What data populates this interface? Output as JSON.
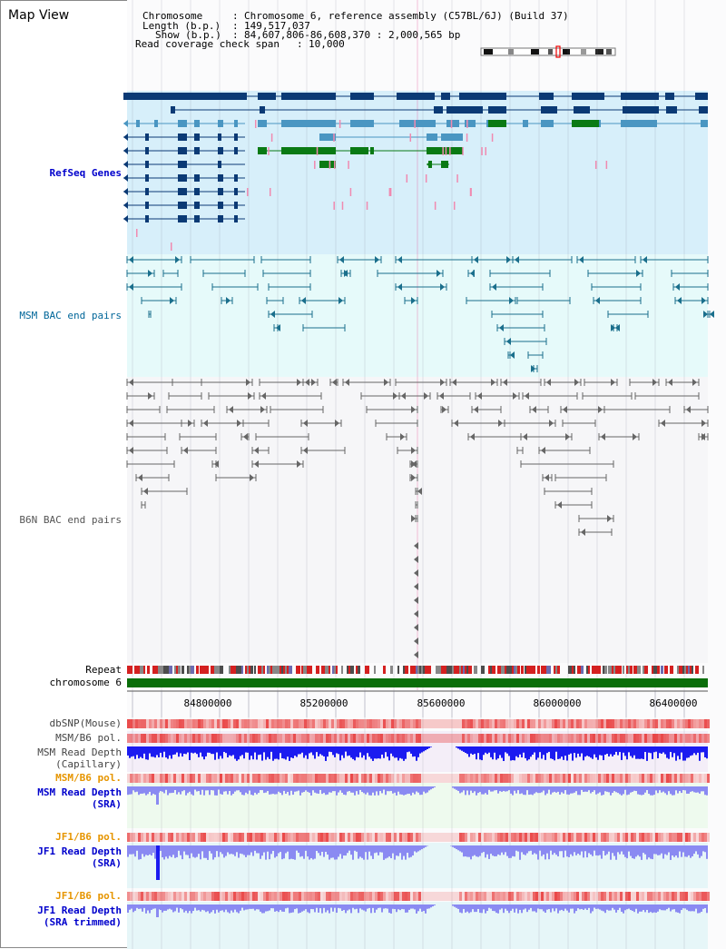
{
  "header": {
    "title": "Map View",
    "chromosome_label": "Chromosome",
    "chromosome_value": "Chromosome 6, reference assembly (C57BL/6J) (Build 37)",
    "length_label": "Length (b.p.)",
    "length_value": "149,517,037",
    "show_label": "Show (b.p.)",
    "show_value": "84,607,806-86,608,370 : 2,000,565 bp",
    "coverage_label": "Read coverage check span",
    "coverage_value": "10,000",
    "separator": ":"
  },
  "tracks": {
    "refseq": {
      "label": "RefSeq Genes",
      "color": "#0000cc"
    },
    "msm_bac": {
      "label": "MSM BAC end pairs",
      "color": "#006699"
    },
    "b6n_bac": {
      "label": "B6N BAC end pairs",
      "color": "#555555"
    },
    "repeat": {
      "label": "Repeat"
    },
    "chromosome": {
      "label": "chromosome 6"
    },
    "dbsnp": {
      "label": "dbSNP(Mouse)"
    },
    "msm_b6_pol_cap": {
      "label": "MSM/B6 pol."
    },
    "msm_depth_cap": {
      "label_1": "MSM Read Depth",
      "label_2": "(Capillary)"
    },
    "msm_b6_pol_sra": {
      "label": "MSM/B6 pol.",
      "color": "#e69500"
    },
    "msm_depth_sra": {
      "label_1": "MSM Read Depth",
      "label_2": "(SRA)",
      "color": "#0000cc"
    },
    "jf1_b6_pol": {
      "label": "JF1/B6 pol.",
      "color": "#e69500"
    },
    "jf1_depth_sra": {
      "label_1": "JF1 Read Depth",
      "label_2": "(SRA)",
      "color": "#0000cc"
    },
    "jf1_b6_pol_2": {
      "label": "JF1/B6 pol.",
      "color": "#e69500"
    },
    "jf1_depth_trim": {
      "label_1": "JF1 Read Depth",
      "label_2": "(SRA trimmed)",
      "color": "#0000cc"
    }
  },
  "axis": {
    "ticks": [
      "84800000",
      "85200000",
      "85600000",
      "86000000",
      "86400000"
    ]
  },
  "colors": {
    "refseq_bg": "#d7effa",
    "msm_bg": "#e6fafa",
    "gene_dark": "#0b3a75",
    "gene_mid": "#4a96c2",
    "gene_green": "#0a7a14",
    "bac_teal": "#1a6f8c",
    "bac_gray": "#666666",
    "chrom_green": "#0a6e0a",
    "depth_blue": "#1b1bf0",
    "depth_light": "#8a8af2"
  }
}
